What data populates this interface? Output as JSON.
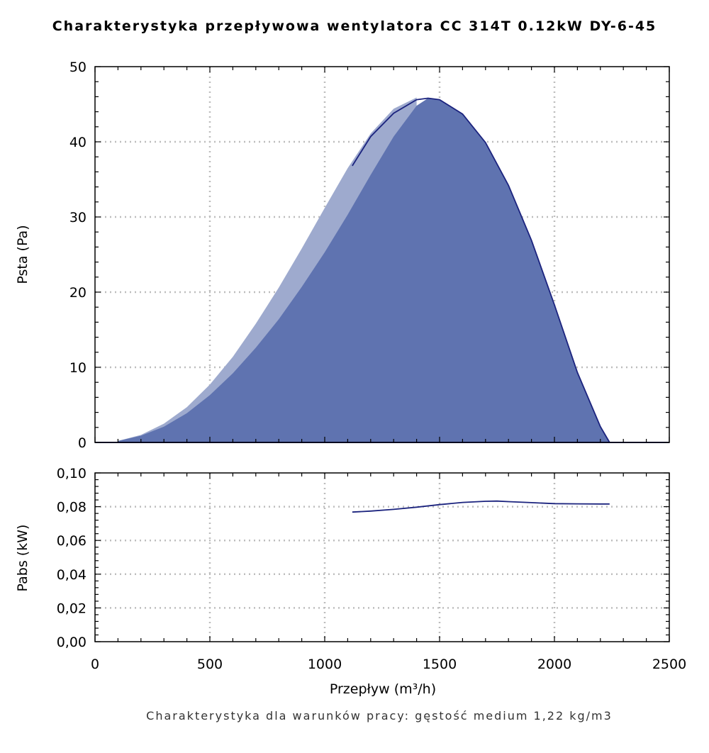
{
  "chart_data": [
    {
      "type": "area",
      "title": "Charakterystyka przepływowa wentylatora CC 314T 0.12kW DY-6-45",
      "xlabel": "",
      "ylabel": "Psta (Pa)",
      "xlim": [
        0,
        2500
      ],
      "ylim": [
        0,
        50
      ],
      "grid": true,
      "x_ticks": [
        "0",
        "500",
        "1000",
        "1500",
        "2000",
        "2500"
      ],
      "y_ticks": [
        "0",
        "10",
        "20",
        "30",
        "40",
        "50"
      ],
      "series": [
        {
          "color": "#9eaace",
          "x": [
            100,
            200,
            300,
            400,
            500,
            600,
            700,
            800,
            900,
            1000,
            1100,
            1200,
            1300,
            1400
          ],
          "y": [
            0.2,
            1.0,
            2.5,
            4.7,
            7.7,
            11.4,
            15.8,
            20.6,
            25.8,
            31.2,
            36.5,
            41.1,
            44.4,
            45.9
          ]
        },
        {
          "color": "#5f73b0",
          "x": [
            100,
            200,
            300,
            400,
            500,
            600,
            700,
            800,
            900,
            1000,
            1100,
            1200,
            1300,
            1400,
            1450,
            1500,
            1600,
            1700,
            1800,
            1900,
            2000,
            2100,
            2200,
            2240
          ],
          "y": [
            0.2,
            0.9,
            2.1,
            3.9,
            6.3,
            9.2,
            12.6,
            16.4,
            20.7,
            25.3,
            30.3,
            35.6,
            40.7,
            44.8,
            45.8,
            45.6,
            43.7,
            39.9,
            34.2,
            26.9,
            18.3,
            9.3,
            2.1,
            0
          ]
        },
        {
          "color": "#1b237e",
          "x": [
            1120,
            1200,
            1300,
            1400,
            1450,
            1500,
            1600,
            1700,
            1800,
            1900,
            2000,
            2100,
            2200,
            2240
          ],
          "y": [
            36.8,
            40.7,
            43.8,
            45.6,
            45.8,
            45.6,
            43.7,
            39.9,
            34.2,
            26.9,
            18.3,
            9.3,
            2.1,
            0
          ]
        }
      ]
    },
    {
      "type": "line",
      "xlabel": "Przepływ (m³/h)",
      "ylabel": "Pabs (kW)",
      "xlim": [
        0,
        2500
      ],
      "ylim": [
        0,
        0.1
      ],
      "grid": true,
      "x_ticks": [
        "0",
        "500",
        "1000",
        "1500",
        "2000",
        "2500"
      ],
      "y_ticks": [
        "0,00",
        "0,02",
        "0,04",
        "0,06",
        "0,08",
        "0,10"
      ],
      "series": [
        {
          "color": "#1b237e",
          "x": [
            1120,
            1200,
            1300,
            1400,
            1500,
            1600,
            1700,
            1750,
            1800,
            1900,
            2000,
            2100,
            2200,
            2240
          ],
          "y": [
            0.0768,
            0.0774,
            0.0784,
            0.0797,
            0.0812,
            0.0825,
            0.0832,
            0.0833,
            0.083,
            0.0824,
            0.0818,
            0.0817,
            0.0816,
            0.0816
          ]
        }
      ]
    }
  ],
  "footnote": "Charakterystyka dla warunków pracy: gęstość medium 1,22 kg/m3"
}
